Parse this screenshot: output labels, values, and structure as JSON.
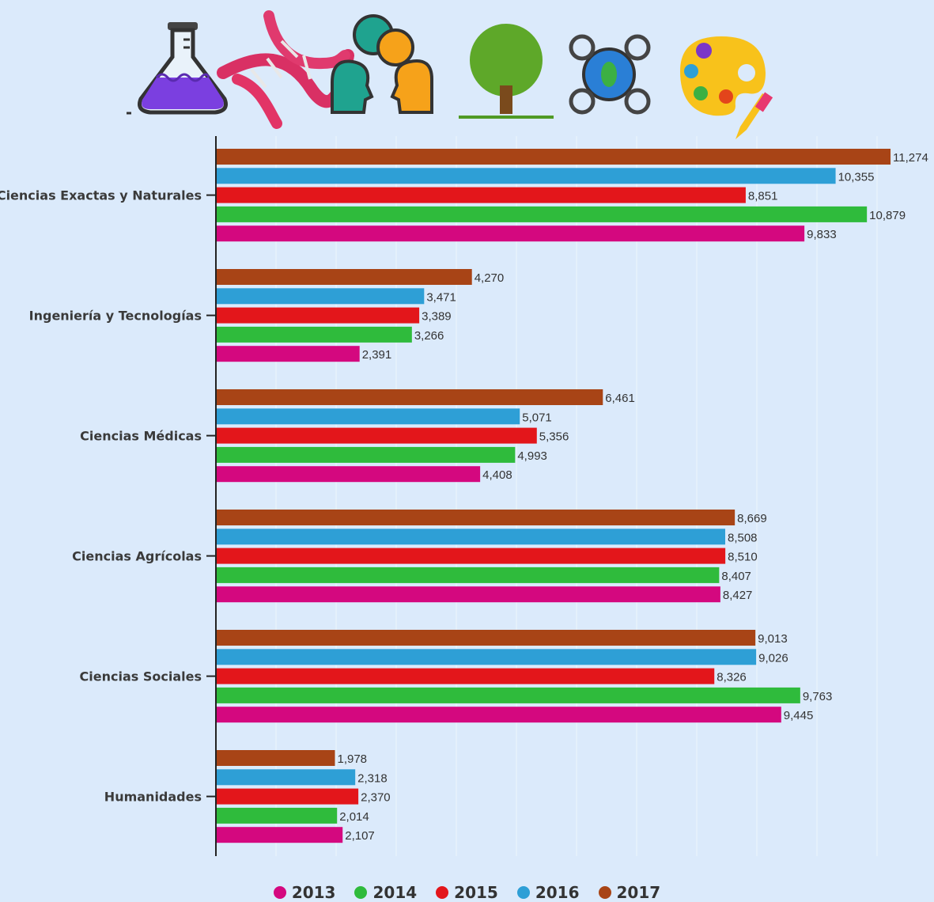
{
  "chart_data": {
    "type": "bar",
    "orientation": "horizontal",
    "categories": [
      "Ciencias Exactas y Naturales",
      "Ingeniería y Tecnologías",
      "Ciencias Médicas",
      "Ciencias Agrícolas",
      "Ciencias Sociales",
      "Humanidades"
    ],
    "series": [
      {
        "name": "2017",
        "color": "#a84416",
        "values": [
          11274,
          4270,
          6461,
          8669,
          9013,
          1978
        ]
      },
      {
        "name": "2016",
        "color": "#2e9fd6",
        "values": [
          10355,
          3471,
          5071,
          8508,
          9026,
          2318
        ]
      },
      {
        "name": "2015",
        "color": "#e3161b",
        "values": [
          8851,
          3389,
          5356,
          8510,
          8326,
          2370
        ]
      },
      {
        "name": "2014",
        "color": "#2fbb3c",
        "values": [
          10879,
          3266,
          4993,
          8407,
          9763,
          2014
        ]
      },
      {
        "name": "2013",
        "color": "#d4087f",
        "values": [
          9833,
          2391,
          4408,
          8427,
          9445,
          2107
        ]
      }
    ],
    "xlim": [
      0,
      11300
    ],
    "grid": true,
    "legend_position": "bottom",
    "legend_order": [
      "2013",
      "2014",
      "2015",
      "2016",
      "2017"
    ]
  },
  "icons": [
    "flask-icon",
    "dna-icon",
    "people-talking-icon",
    "tree-icon",
    "gears-icon",
    "paint-palette-icon"
  ]
}
